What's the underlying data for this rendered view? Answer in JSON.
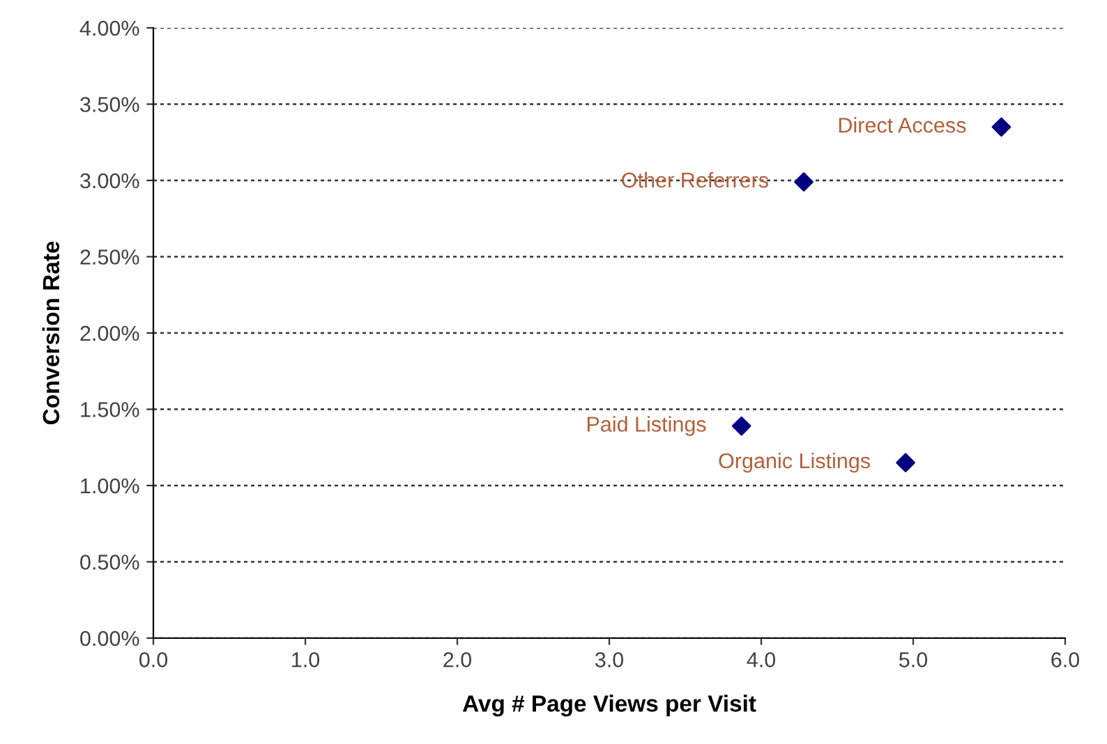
{
  "chart_data": {
    "type": "scatter",
    "xlabel": "Avg # Page Views per Visit",
    "ylabel": "Conversion Rate",
    "series": [
      {
        "color": "#000080",
        "x": [
          5.58,
          4.28,
          3.87,
          4.95
        ],
        "values": [
          3.35,
          2.99,
          1.39,
          1.15
        ]
      }
    ],
    "annotations": [
      {
        "text": "Direct Access",
        "x": 5.58,
        "y": 3.35
      },
      {
        "text": "Other Referrers",
        "x": 4.28,
        "y": 2.99
      },
      {
        "text": "Paid Listings",
        "x": 3.87,
        "y": 1.39
      },
      {
        "text": "Organic Listings",
        "x": 4.95,
        "y": 1.15
      }
    ],
    "xlim": [
      0,
      6
    ],
    "xticks": [
      {
        "value": 0,
        "label": "0.0"
      },
      {
        "value": 1,
        "label": "1.0"
      },
      {
        "value": 2,
        "label": "2.0"
      },
      {
        "value": 3,
        "label": "3.0"
      },
      {
        "value": 4,
        "label": "4.0"
      },
      {
        "value": 5,
        "label": "5.0"
      },
      {
        "value": 6,
        "label": "6.0"
      }
    ],
    "ylim": [
      0,
      4
    ],
    "yticks": [
      {
        "value": 0,
        "label": "0.00%"
      },
      {
        "value": 0.5,
        "label": "0.50%"
      },
      {
        "value": 1,
        "label": "1.00%"
      },
      {
        "value": 1.5,
        "label": "1.50%"
      },
      {
        "value": 2,
        "label": "2.00%"
      },
      {
        "value": 2.5,
        "label": "2.50%"
      },
      {
        "value": 3,
        "label": "3.00%"
      },
      {
        "value": 3.5,
        "label": "3.50%"
      },
      {
        "value": 4,
        "label": "4.00%"
      }
    ],
    "grid": "y",
    "marker": "diamond"
  }
}
